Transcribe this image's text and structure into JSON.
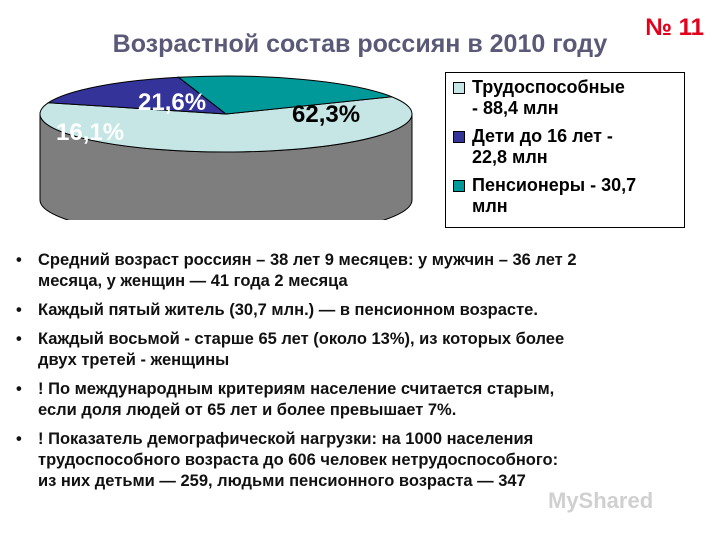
{
  "slide_number": "№ 11",
  "title": "Возрастной состав россиян в 2010 году",
  "chart_data": {
    "type": "pie",
    "series": [
      {
        "name": "Трудоспособные - 88,4 млн",
        "value": 62.3,
        "label": "62,3%",
        "color": "#c6e6e6",
        "side_color": "#7e7e7e"
      },
      {
        "name": "Дети до 16 лет - 22,8 млн",
        "value": 16.1,
        "label": "16,1%",
        "color": "#333399",
        "side_color": "#1b1b5c"
      },
      {
        "name": "Пенсионеры - 30,7 млн",
        "value": 21.6,
        "label": "21,6%",
        "color": "#009999",
        "side_color": "#006262"
      }
    ],
    "legend_placement": "right"
  },
  "legend": [
    {
      "lines": [
        "Трудоспособные",
        "- 88,4 млн"
      ]
    },
    {
      "lines": [
        "Дети до 16 лет -",
        "22,8 млн"
      ]
    },
    {
      "lines": [
        "Пенсионеры - 30,7",
        "млн"
      ]
    }
  ],
  "bullets": [
    {
      "lines": [
        "Средний возраст россиян – 38 лет 9 месяцев: у мужчин – 36 лет 2",
        "месяца, у  женщин — 41 года 2 месяца"
      ]
    },
    {
      "lines": [
        "Каждый пятый житель (30,7 млн.) — в пенсионном возрасте."
      ]
    },
    {
      "lines": [
        "Каждый восьмой - старше 65 лет (около 13%), из которых более",
        "двух третей - женщины"
      ]
    },
    {
      "lines": [
        "! По международным критериям население считается старым,",
        "если доля людей от  65 лет и более превышает 7%."
      ]
    },
    {
      "lines": [
        "! Показатель демографической нагрузки: на 1000 населения",
        "трудоспособного возраста до 606 человек нетрудоспособного:",
        "из них детьми — 259, людьми пенсионного возраста — 347"
      ]
    }
  ],
  "watermark": "MyShared"
}
